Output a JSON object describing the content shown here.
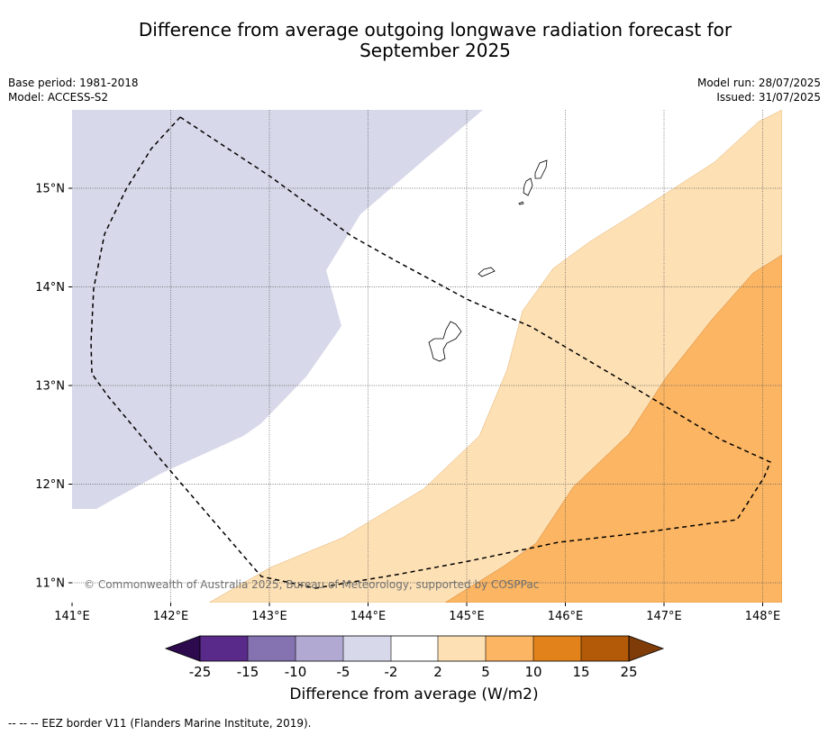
{
  "title_line1": "Difference from average outgoing longwave radiation forecast for",
  "title_line2": "September 2025",
  "base_period": "Base period: 1981-2018",
  "model": "Model: ACCESS-S2",
  "model_run": "Model run: 28/07/2025",
  "issued": "Issued: 31/07/2025",
  "copyright": "© Commonwealth of Australia 2025, Bureau of Meteorology, supported by COSPPac",
  "footer": "--  --  -- EEZ border V11 (Flanders Marine Institute, 2019).",
  "map": {
    "lon_labels": [
      "141°E",
      "142°E",
      "143°E",
      "144°E",
      "145°E",
      "146°E",
      "147°E",
      "148°E"
    ],
    "lat_labels": [
      "15°N",
      "14°N",
      "13°N",
      "12°N",
      "11°N"
    ],
    "lon_range": [
      141.0,
      148.2
    ],
    "lat_range": [
      10.8,
      15.8
    ]
  },
  "colorbar": {
    "title": "Difference from average (W/m2)",
    "ticks": [
      "-25",
      "-15",
      "-10",
      "-5",
      "-2",
      "2",
      "5",
      "10",
      "15",
      "25"
    ],
    "colors": [
      "#2d0a4e",
      "#5a2a8a",
      "#8473b0",
      "#b1a9d1",
      "#d7d8e9",
      "#ffffff",
      "#fde0b4",
      "#fbb563",
      "#e1821a",
      "#b35a08",
      "#7f3c08"
    ]
  }
}
